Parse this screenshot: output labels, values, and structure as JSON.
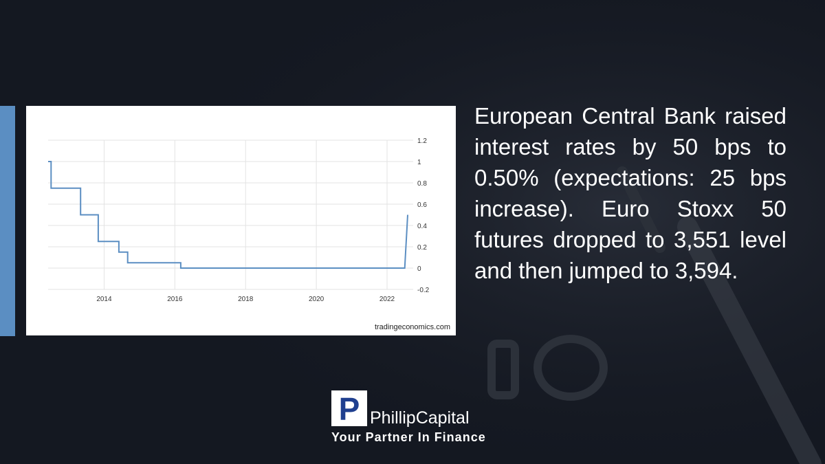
{
  "slide": {
    "body_text": "European Central Bank raised interest rates by 50 bps to 0.50% (expectations: 25 bps increase). Euro Stoxx 50 futures dropped to 3,551 level and then jumped to 3,594.",
    "source": "tradingeconomics.com",
    "brand": {
      "logo_letter": "P",
      "name": "PhillipCapital",
      "tagline": "Your Partner In Finance"
    },
    "colors": {
      "background": "#141821",
      "accent": "#5b8ec2",
      "line": "#5b8ec2",
      "logo_blue": "#1f3f8f"
    }
  },
  "chart_data": {
    "type": "line",
    "title": "",
    "xlabel": "",
    "ylabel": "",
    "x_ticks": [
      "2014",
      "2016",
      "2018",
      "2020",
      "2022"
    ],
    "y_ticks": [
      "1.2",
      "1",
      "0.8",
      "0.6",
      "0.4",
      "0.2",
      "0",
      "-0.2"
    ],
    "ylim": [
      -0.2,
      1.2
    ],
    "xlim": [
      "2012-06",
      "2022-08"
    ],
    "grid": true,
    "y_axis_side": "right",
    "series": [
      {
        "points": [
          {
            "x": "2012-06",
            "y": 1.0
          },
          {
            "x": "2012-07",
            "y": 1.0
          },
          {
            "x": "2012-07",
            "y": 0.75
          },
          {
            "x": "2013-05",
            "y": 0.75
          },
          {
            "x": "2013-05",
            "y": 0.5
          },
          {
            "x": "2013-11",
            "y": 0.5
          },
          {
            "x": "2013-11",
            "y": 0.25
          },
          {
            "x": "2014-06",
            "y": 0.25
          },
          {
            "x": "2014-06",
            "y": 0.15
          },
          {
            "x": "2014-09",
            "y": 0.15
          },
          {
            "x": "2014-09",
            "y": 0.05
          },
          {
            "x": "2016-03",
            "y": 0.05
          },
          {
            "x": "2016-03",
            "y": 0.0
          },
          {
            "x": "2022-07",
            "y": 0.0
          },
          {
            "x": "2022-08",
            "y": 0.5
          }
        ]
      }
    ]
  }
}
